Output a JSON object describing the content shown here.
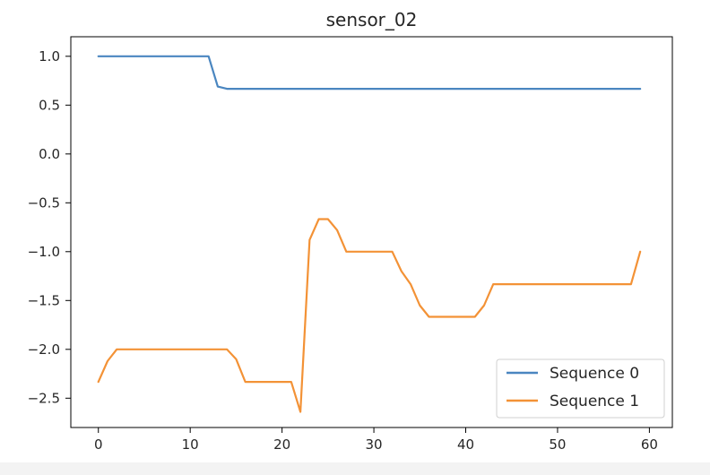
{
  "chart_data": {
    "type": "line",
    "title": "sensor_02",
    "xlabel": "",
    "ylabel": "",
    "xlim": [
      -3,
      62.5
    ],
    "ylim": [
      -2.8,
      1.2
    ],
    "xticks": [
      0,
      10,
      20,
      30,
      40,
      50,
      60
    ],
    "xtick_labels": [
      "0",
      "10",
      "20",
      "30",
      "40",
      "50",
      "60"
    ],
    "yticks": [
      1.0,
      0.5,
      0.0,
      -0.5,
      -1.0,
      -1.5,
      -2.0,
      -2.5
    ],
    "ytick_labels": [
      "1.0",
      "0.5",
      "0.0",
      "−0.5",
      "−1.0",
      "−1.5",
      "−2.0",
      "−2.5"
    ],
    "grid": false,
    "legend_position": "lower-right",
    "series": [
      {
        "name": "Sequence 0",
        "color": "#4a86c0",
        "x": [
          0,
          1,
          2,
          3,
          4,
          5,
          6,
          7,
          8,
          9,
          10,
          11,
          12,
          13,
          14,
          15,
          16,
          17,
          18,
          19,
          20,
          21,
          22,
          23,
          24,
          25,
          26,
          27,
          28,
          29,
          30,
          31,
          32,
          33,
          34,
          35,
          36,
          37,
          38,
          39,
          40,
          41,
          42,
          43,
          44,
          45,
          46,
          47,
          48,
          49,
          50,
          51,
          52,
          53,
          54,
          55,
          56,
          57,
          58,
          59
        ],
        "y": [
          1.0,
          1.0,
          1.0,
          1.0,
          1.0,
          1.0,
          1.0,
          1.0,
          1.0,
          1.0,
          1.0,
          1.0,
          1.0,
          0.69,
          0.667,
          0.667,
          0.667,
          0.667,
          0.667,
          0.667,
          0.667,
          0.667,
          0.667,
          0.667,
          0.667,
          0.667,
          0.667,
          0.667,
          0.667,
          0.667,
          0.667,
          0.667,
          0.667,
          0.667,
          0.667,
          0.667,
          0.667,
          0.667,
          0.667,
          0.667,
          0.667,
          0.667,
          0.667,
          0.667,
          0.667,
          0.667,
          0.667,
          0.667,
          0.667,
          0.667,
          0.667,
          0.667,
          0.667,
          0.667,
          0.667,
          0.667,
          0.667,
          0.667,
          0.667,
          0.667
        ]
      },
      {
        "name": "Sequence 1",
        "color": "#f39236",
        "x": [
          0,
          1,
          2,
          3,
          4,
          5,
          6,
          7,
          8,
          9,
          10,
          11,
          12,
          13,
          14,
          15,
          16,
          17,
          18,
          19,
          20,
          21,
          22,
          23,
          24,
          25,
          26,
          27,
          28,
          29,
          30,
          31,
          32,
          33,
          34,
          35,
          36,
          37,
          38,
          39,
          40,
          41,
          42,
          43,
          44,
          45,
          46,
          47,
          48,
          49,
          50,
          51,
          52,
          53,
          54,
          55,
          56,
          57,
          58,
          59
        ],
        "y": [
          -2.333,
          -2.12,
          -2.0,
          -2.0,
          -2.0,
          -2.0,
          -2.0,
          -2.0,
          -2.0,
          -2.0,
          -2.0,
          -2.0,
          -2.0,
          -2.0,
          -2.0,
          -2.1,
          -2.333,
          -2.333,
          -2.333,
          -2.333,
          -2.333,
          -2.333,
          -2.64,
          -0.88,
          -0.667,
          -0.667,
          -0.78,
          -1.0,
          -1.0,
          -1.0,
          -1.0,
          -1.0,
          -1.0,
          -1.2,
          -1.333,
          -1.55,
          -1.667,
          -1.667,
          -1.667,
          -1.667,
          -1.667,
          -1.667,
          -1.55,
          -1.333,
          -1.333,
          -1.333,
          -1.333,
          -1.333,
          -1.333,
          -1.333,
          -1.333,
          -1.333,
          -1.333,
          -1.333,
          -1.333,
          -1.333,
          -1.333,
          -1.333,
          -1.333,
          -1.0
        ]
      }
    ]
  }
}
